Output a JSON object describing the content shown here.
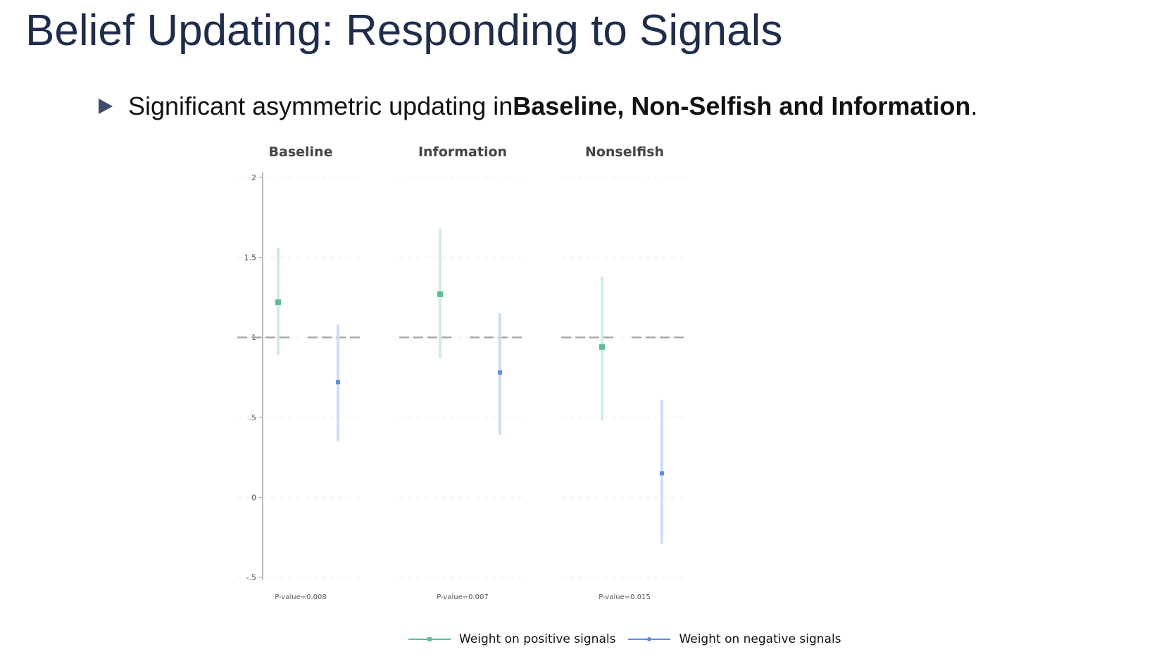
{
  "slide": {
    "title": "Belief Updating: Responding to Signals",
    "bullet": {
      "prefix": "Significant asymmetric updating in ",
      "emphasis": "Baseline, Non-Selfish and Information",
      "suffix": "."
    }
  },
  "colors": {
    "positive": "#5cc096",
    "negative": "#5b8fe0",
    "title": "#1f2d4a"
  },
  "chart_data": {
    "type": "scatter",
    "panels": [
      "Baseline",
      "Information",
      "Nonselfish"
    ],
    "panel_footers": [
      "P-value=0.008",
      "P-value=0.007",
      "P-value=0.015"
    ],
    "y_ticks": [
      "2",
      "1.5",
      "1",
      ".5",
      "0",
      "-.5"
    ],
    "y_tick_values": [
      2,
      1.5,
      1,
      0.5,
      0,
      -0.5
    ],
    "ylim": [
      -0.5,
      2
    ],
    "reference_line": 1,
    "series": [
      {
        "name": "Weight on positive signals",
        "color": "#5cc096",
        "points": [
          {
            "panel": "Baseline",
            "estimate": 1.22,
            "ci": [
              0.89,
              1.56
            ]
          },
          {
            "panel": "Information",
            "estimate": 1.27,
            "ci": [
              0.87,
              1.68
            ]
          },
          {
            "panel": "Nonselfish",
            "estimate": 0.94,
            "ci": [
              0.48,
              1.38
            ]
          }
        ]
      },
      {
        "name": "Weight on negative signals",
        "color": "#5b8fe0",
        "points": [
          {
            "panel": "Baseline",
            "estimate": 0.72,
            "ci": [
              0.35,
              1.08
            ]
          },
          {
            "panel": "Information",
            "estimate": 0.78,
            "ci": [
              0.39,
              1.15
            ]
          },
          {
            "panel": "Nonselfish",
            "estimate": 0.15,
            "ci": [
              -0.29,
              0.61
            ]
          }
        ]
      }
    ]
  }
}
